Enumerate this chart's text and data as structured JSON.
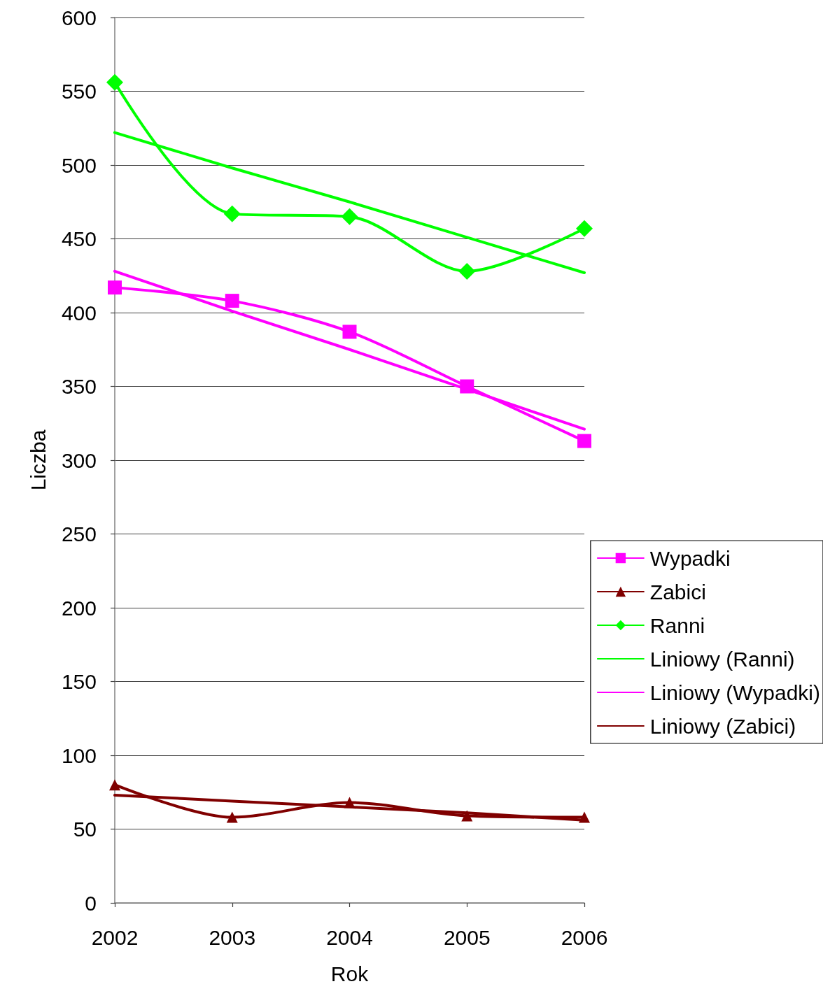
{
  "chart_data": {
    "type": "line",
    "xlabel": "Rok",
    "ylabel": "Liczba",
    "x": [
      2002,
      2003,
      2004,
      2005,
      2006
    ],
    "xlim": [
      2002,
      2006
    ],
    "xticks": [
      2002,
      2003,
      2004,
      2005,
      2006
    ],
    "ylim": [
      0,
      600
    ],
    "yticks": [
      0,
      50,
      100,
      150,
      200,
      250,
      300,
      350,
      400,
      450,
      500,
      550,
      600
    ],
    "grid": "y",
    "legend": "right",
    "series": [
      {
        "name": "Wypadki",
        "color": "#ff00ff",
        "marker": "square",
        "values": [
          417,
          408,
          387,
          350,
          313
        ]
      },
      {
        "name": "Zabici",
        "color": "#800000",
        "marker": "triangle",
        "values": [
          80,
          58,
          68,
          59,
          58
        ]
      },
      {
        "name": "Ranni",
        "color": "#00ff00",
        "marker": "diamond",
        "values": [
          556,
          467,
          465,
          428,
          457
        ]
      },
      {
        "name": "Liniowy (Ranni)",
        "color": "#00ff00",
        "marker": "none",
        "values": [
          522,
          498,
          475,
          451,
          427
        ]
      },
      {
        "name": "Liniowy (Wypadki)",
        "color": "#ff00ff",
        "marker": "none",
        "values": [
          428,
          401,
          375,
          348,
          321
        ]
      },
      {
        "name": "Liniowy (Zabici)",
        "color": "#800000",
        "marker": "none",
        "values": [
          73,
          69,
          65,
          61,
          56
        ]
      }
    ]
  }
}
